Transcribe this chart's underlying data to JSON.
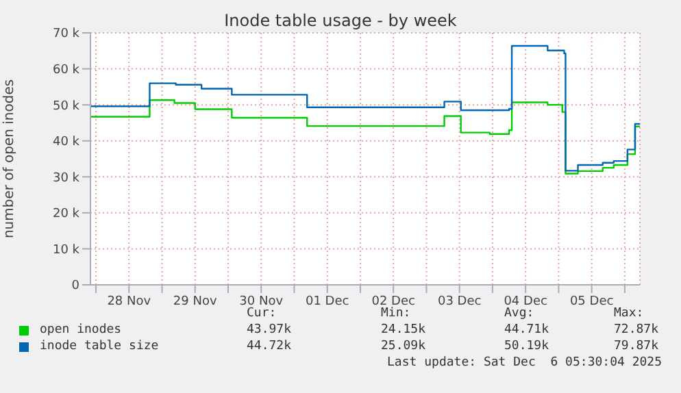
{
  "chart_data": {
    "type": "step",
    "title": "Inode table usage - by week",
    "ylabel": "number of open inodes",
    "xlim": [
      "2025-11-27T22:00",
      "2025-12-06T05:30"
    ],
    "xticks": [
      {
        "value": "2025-11-28T00:00",
        "label": null
      },
      {
        "value": "2025-11-28T12:00",
        "label": "28 Nov"
      },
      {
        "value": "2025-11-29T00:00",
        "label": null
      },
      {
        "value": "2025-11-29T12:00",
        "label": "29 Nov"
      },
      {
        "value": "2025-11-30T00:00",
        "label": null
      },
      {
        "value": "2025-11-30T12:00",
        "label": "30 Nov"
      },
      {
        "value": "2025-12-01T00:00",
        "label": null
      },
      {
        "value": "2025-12-01T12:00",
        "label": "01 Dec"
      },
      {
        "value": "2025-12-02T00:00",
        "label": null
      },
      {
        "value": "2025-12-02T12:00",
        "label": "02 Dec"
      },
      {
        "value": "2025-12-03T00:00",
        "label": null
      },
      {
        "value": "2025-12-03T12:00",
        "label": "03 Dec"
      },
      {
        "value": "2025-12-04T00:00",
        "label": null
      },
      {
        "value": "2025-12-04T12:00",
        "label": "04 Dec"
      },
      {
        "value": "2025-12-05T00:00",
        "label": null
      },
      {
        "value": "2025-12-05T12:00",
        "label": "05 Dec"
      },
      {
        "value": "2025-12-06T00:00",
        "label": null
      }
    ],
    "ylim": [
      0,
      70000
    ],
    "yticks": [
      {
        "value": 0,
        "label": "0"
      },
      {
        "value": 10000,
        "label": "10 k"
      },
      {
        "value": 20000,
        "label": "20 k"
      },
      {
        "value": 30000,
        "label": "30 k"
      },
      {
        "value": 40000,
        "label": "40 k"
      },
      {
        "value": 50000,
        "label": "50 k"
      },
      {
        "value": 60000,
        "label": "60 k"
      },
      {
        "value": 70000,
        "label": "70 k"
      }
    ],
    "grid": true,
    "legend": "bottom left",
    "marker": "none",
    "series": [
      {
        "name": "open inodes",
        "color": "#00cc00",
        "x": [
          "2025-11-27T22:00",
          "2025-11-28T19:30",
          "2025-11-29T04:30",
          "2025-11-29T12:00",
          "2025-11-30T01:20",
          "2025-12-01T04:40",
          "2025-12-03T06:30",
          "2025-12-03T12:30",
          "2025-12-03T23:00",
          "2025-12-04T06:00",
          "2025-12-04T07:00",
          "2025-12-04T20:00",
          "2025-12-05T01:20",
          "2025-12-05T02:30",
          "2025-12-05T07:00",
          "2025-12-05T16:00",
          "2025-12-05T20:00",
          "2025-12-06T01:00",
          "2025-12-06T03:45",
          "2025-12-06T05:30"
        ],
        "values": [
          46700,
          51300,
          50500,
          48800,
          46400,
          44100,
          46900,
          42300,
          41900,
          43000,
          50700,
          50000,
          48000,
          30900,
          31600,
          32500,
          33300,
          36300,
          44000,
          44000
        ]
      },
      {
        "name": "inode table size",
        "color": "#0066b3",
        "x": [
          "2025-11-27T22:00",
          "2025-11-28T19:30",
          "2025-11-29T05:00",
          "2025-11-29T14:20",
          "2025-11-30T01:20",
          "2025-12-01T04:40",
          "2025-12-03T06:30",
          "2025-12-03T12:30",
          "2025-12-04T06:00",
          "2025-12-04T07:00",
          "2025-12-04T20:00",
          "2025-12-05T02:00",
          "2025-12-05T02:30",
          "2025-12-05T07:00",
          "2025-12-05T16:00",
          "2025-12-05T20:00",
          "2025-12-06T01:00",
          "2025-12-06T03:45",
          "2025-12-06T05:30"
        ],
        "values": [
          49600,
          56000,
          55600,
          54500,
          52800,
          49300,
          50900,
          48500,
          48900,
          66400,
          65100,
          64300,
          31700,
          33300,
          33900,
          34400,
          37600,
          44700,
          44700
        ]
      }
    ],
    "annotations": [
      "Cur:",
      "Min:",
      "Avg:",
      "Max:",
      "43.97k",
      "24.15k",
      "44.71k",
      "72.87k",
      "44.72k",
      "25.09k",
      "50.19k",
      "79.87k",
      "Last update: Sat Dec  6 05:30:04 2025"
    ]
  }
}
